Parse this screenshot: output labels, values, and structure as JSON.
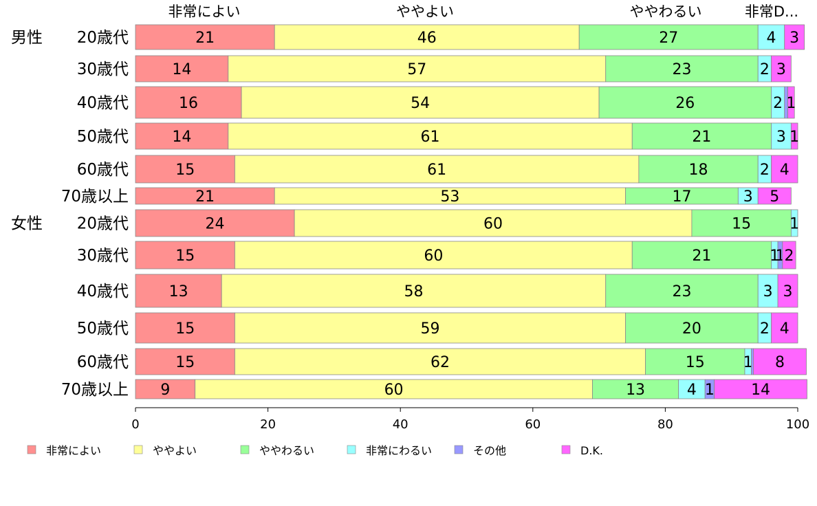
{
  "chart_data": {
    "type": "bar",
    "stacked": true,
    "orientation": "horizontal",
    "xlim": [
      0,
      100
    ],
    "x_ticks": [
      0,
      20,
      40,
      60,
      80,
      100
    ],
    "grid": false,
    "legend_position": "bottom",
    "top_labels": [
      "非常によい",
      "ややよい",
      "ややわるい",
      "非常D..."
    ],
    "rows": [
      {
        "group": "男性",
        "label": "20歳代"
      },
      {
        "group": "",
        "label": "30歳代"
      },
      {
        "group": "",
        "label": "40歳代"
      },
      {
        "group": "",
        "label": "50歳代"
      },
      {
        "group": "",
        "label": "60歳代"
      },
      {
        "group": "",
        "label": "70歳以上"
      },
      {
        "group": "女性",
        "label": "20歳代"
      },
      {
        "group": "",
        "label": "30歳代"
      },
      {
        "group": "",
        "label": "40歳代"
      },
      {
        "group": "",
        "label": "50歳代"
      },
      {
        "group": "",
        "label": "60歳代"
      },
      {
        "group": "",
        "label": "70歳以上"
      }
    ],
    "series": [
      {
        "name": "非常によい",
        "color": "#ff9090",
        "values": [
          21,
          14,
          16,
          14,
          15,
          21,
          24,
          15,
          13,
          15,
          15,
          9
        ],
        "labels": [
          "21",
          "14",
          "16",
          "14",
          "15",
          "21",
          "24",
          "15",
          "13",
          "15",
          "15",
          "9"
        ]
      },
      {
        "name": "ややよい",
        "color": "#ffff99",
        "values": [
          46,
          57,
          54,
          61,
          61,
          53,
          60,
          60,
          58,
          59,
          62,
          60
        ],
        "labels": [
          "46",
          "57",
          "54",
          "61",
          "61",
          "53",
          "60",
          "60",
          "58",
          "59",
          "62",
          "60"
        ]
      },
      {
        "name": "ややわるい",
        "color": "#99ff99",
        "values": [
          27,
          23,
          26,
          21,
          18,
          17,
          15,
          21,
          23,
          20,
          15,
          13
        ],
        "labels": [
          "27",
          "23",
          "26",
          "21",
          "18",
          "17",
          "15",
          "21",
          "23",
          "20",
          "15",
          "13"
        ]
      },
      {
        "name": "非常にわるい",
        "color": "#99ffff",
        "values": [
          4,
          2,
          2,
          3,
          2,
          3,
          1,
          1,
          3,
          2,
          1,
          4
        ],
        "labels": [
          "4",
          "2",
          "2",
          "3",
          "2",
          "3",
          "1",
          "1",
          "3",
          "2",
          "1",
          "4"
        ]
      },
      {
        "name": "その他",
        "color": "#9999ff",
        "values": [
          0,
          0,
          0.5,
          0,
          0,
          0,
          0,
          0.7,
          0,
          0,
          0.3,
          1.4
        ],
        "labels": [
          "",
          "",
          "",
          "",
          "",
          "",
          "",
          "1",
          "",
          "",
          "",
          "1"
        ]
      },
      {
        "name": "D.K.",
        "color": "#ff66ff",
        "values": [
          3,
          3,
          1,
          1,
          4,
          5,
          0,
          2,
          3,
          4,
          8,
          14
        ],
        "labels": [
          "3",
          "3",
          "1",
          "1",
          "4",
          "5",
          "",
          "2",
          "3",
          "4",
          "8",
          "14"
        ]
      }
    ]
  }
}
